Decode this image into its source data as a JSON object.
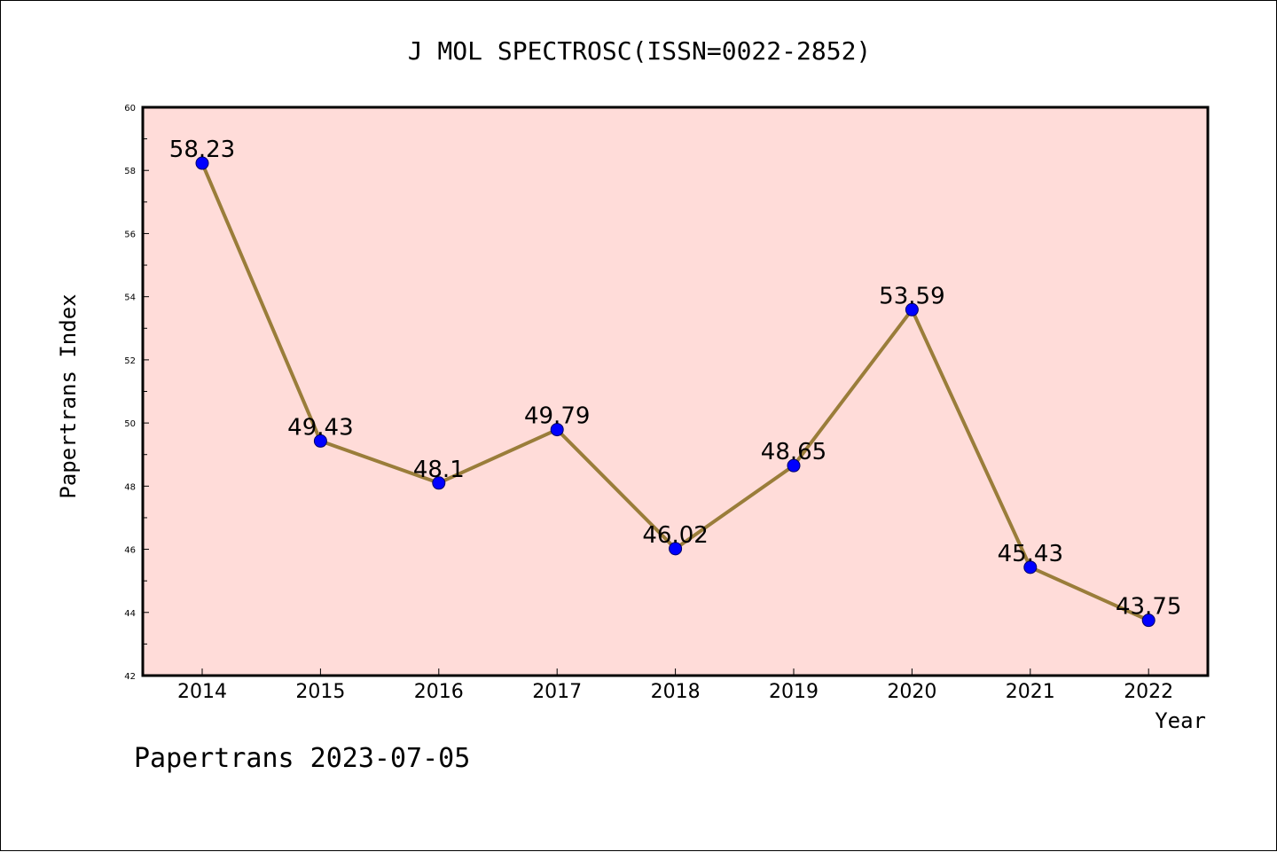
{
  "chart_data": {
    "type": "line",
    "title": "J MOL SPECTROSC(ISSN=0022-2852)",
    "xlabel": "Year",
    "ylabel": "Papertrans Index",
    "footer": "Papertrans 2023-07-05",
    "categories": [
      "2014",
      "2015",
      "2016",
      "2017",
      "2018",
      "2019",
      "2020",
      "2021",
      "2022"
    ],
    "values": [
      58.23,
      49.43,
      48.1,
      49.79,
      46.02,
      48.65,
      53.59,
      45.43,
      43.75
    ],
    "data_labels": [
      "58.23",
      "49.43",
      "48.1",
      "49.79",
      "46.02",
      "48.65",
      "53.59",
      "45.43",
      "43.75"
    ],
    "ylim": [
      42,
      60
    ],
    "yticks": [
      "42",
      "44",
      "46",
      "48",
      "50",
      "52",
      "54",
      "56",
      "58",
      "60"
    ],
    "grid": false,
    "colors": {
      "plot_background": "#ffdcd9",
      "line": "#9a7d3a",
      "marker": "#0000ff",
      "marker_edge": "#000066"
    }
  }
}
